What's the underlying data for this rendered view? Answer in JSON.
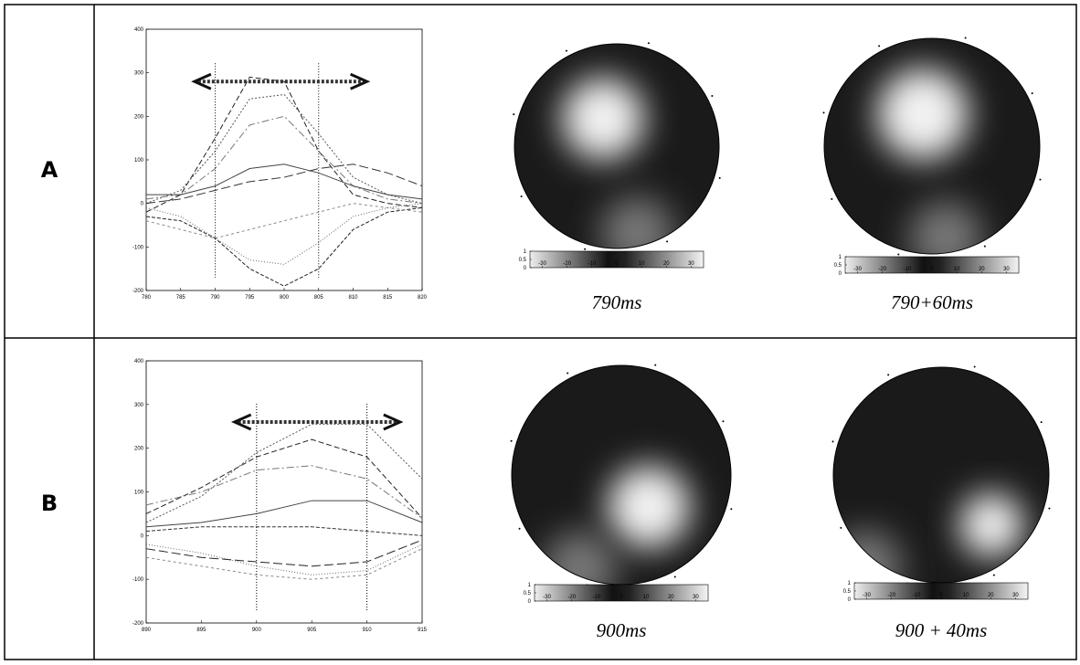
{
  "panels": [
    {
      "label": "A",
      "captions": [
        "790ms",
        "790+60ms"
      ]
    },
    {
      "label": "B",
      "captions": [
        "900ms",
        "900 + 40ms"
      ]
    }
  ],
  "chart_data": [
    {
      "type": "line",
      "x": [
        780,
        785,
        790,
        795,
        800,
        805,
        810,
        815,
        820
      ],
      "series": [
        {
          "color": "#222222",
          "values": [
            -20,
            20,
            150,
            290,
            280,
            120,
            20,
            0,
            -10
          ]
        },
        {
          "color": "#555555",
          "values": [
            0,
            30,
            120,
            240,
            250,
            160,
            60,
            20,
            0
          ]
        },
        {
          "color": "#777777",
          "values": [
            10,
            20,
            80,
            180,
            200,
            120,
            40,
            10,
            0
          ]
        },
        {
          "color": "#444444",
          "values": [
            20,
            20,
            40,
            80,
            90,
            70,
            40,
            20,
            10
          ]
        },
        {
          "color": "#222222",
          "values": [
            -30,
            -40,
            -80,
            -150,
            -190,
            -150,
            -60,
            -20,
            -10
          ]
        },
        {
          "color": "#666666",
          "values": [
            -10,
            -30,
            -80,
            -130,
            -140,
            -90,
            -30,
            -10,
            0
          ]
        },
        {
          "color": "#333333",
          "values": [
            0,
            10,
            30,
            50,
            60,
            80,
            90,
            70,
            40
          ]
        },
        {
          "color": "#888888",
          "values": [
            -40,
            -60,
            -80,
            -60,
            -40,
            -20,
            0,
            -10,
            -20
          ]
        }
      ],
      "xlim": [
        780,
        820
      ],
      "xticks": [
        780,
        785,
        790,
        795,
        800,
        805,
        810,
        815,
        820
      ],
      "ylim": [
        -200,
        400
      ],
      "yticks": [
        -200,
        -100,
        0,
        100,
        200,
        300,
        400
      ],
      "vlines": [
        790,
        805
      ],
      "arrow": {
        "x": [
          787,
          812
        ],
        "y": 280
      }
    },
    {
      "type": "line",
      "x": [
        890,
        895,
        900,
        905,
        910,
        915
      ],
      "series": [
        {
          "color": "#222222",
          "values": [
            50,
            110,
            180,
            220,
            180,
            40
          ]
        },
        {
          "color": "#555555",
          "values": [
            30,
            90,
            190,
            255,
            255,
            130
          ]
        },
        {
          "color": "#777777",
          "values": [
            70,
            100,
            150,
            160,
            130,
            40
          ]
        },
        {
          "color": "#444444",
          "values": [
            20,
            30,
            50,
            80,
            80,
            30
          ]
        },
        {
          "color": "#333333",
          "values": [
            10,
            20,
            20,
            20,
            10,
            0
          ]
        },
        {
          "color": "#666666",
          "values": [
            -20,
            -40,
            -70,
            -90,
            -80,
            -20
          ]
        },
        {
          "color": "#222222",
          "values": [
            -30,
            -50,
            -60,
            -70,
            -60,
            -10
          ]
        },
        {
          "color": "#888888",
          "values": [
            -50,
            -70,
            -90,
            -100,
            -90,
            -30
          ]
        }
      ],
      "xlim": [
        890,
        915
      ],
      "xticks": [
        890,
        895,
        900,
        905,
        910,
        915
      ],
      "ylim": [
        -200,
        400
      ],
      "yticks": [
        -200,
        -100,
        0,
        100,
        200,
        300,
        400
      ],
      "vlines": [
        900,
        910
      ],
      "arrow": {
        "x": [
          898,
          913
        ],
        "y": 260
      }
    }
  ],
  "colorbar": {
    "ticks": [
      -30,
      -20,
      -10,
      0,
      10,
      20,
      30
    ],
    "yticks": [
      0,
      0.5,
      1
    ],
    "lim": [
      -35,
      35
    ]
  }
}
